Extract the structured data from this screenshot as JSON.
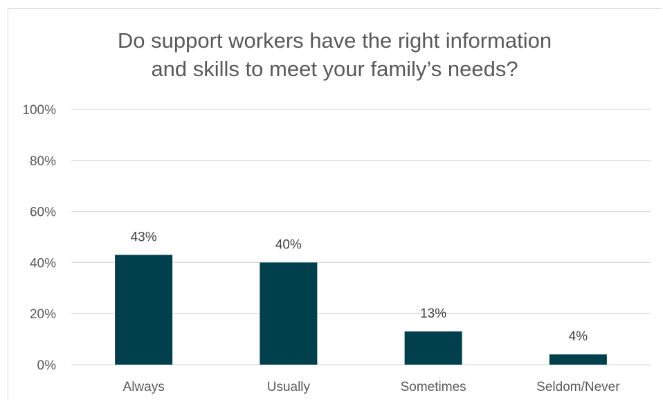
{
  "chart_data": {
    "type": "bar",
    "title_lines": [
      "Do support workers have the right information",
      "and skills to meet your family’s needs?"
    ],
    "categories": [
      "Always",
      "Usually",
      "Sometimes",
      "Seldom/Never"
    ],
    "values": [
      43,
      40,
      13,
      4
    ],
    "value_labels": [
      "43%",
      "40%",
      "13%",
      "4%"
    ],
    "ylim": [
      0,
      100
    ],
    "yticks": [
      0,
      20,
      40,
      60,
      80,
      100
    ],
    "ytick_labels": [
      "0%",
      "20%",
      "40%",
      "60%",
      "80%",
      "100%"
    ],
    "xlabel": "",
    "ylabel": "",
    "grid": true,
    "legend": "none",
    "bar_color": "#003f4c",
    "grid_color": "#d9d9d9"
  }
}
